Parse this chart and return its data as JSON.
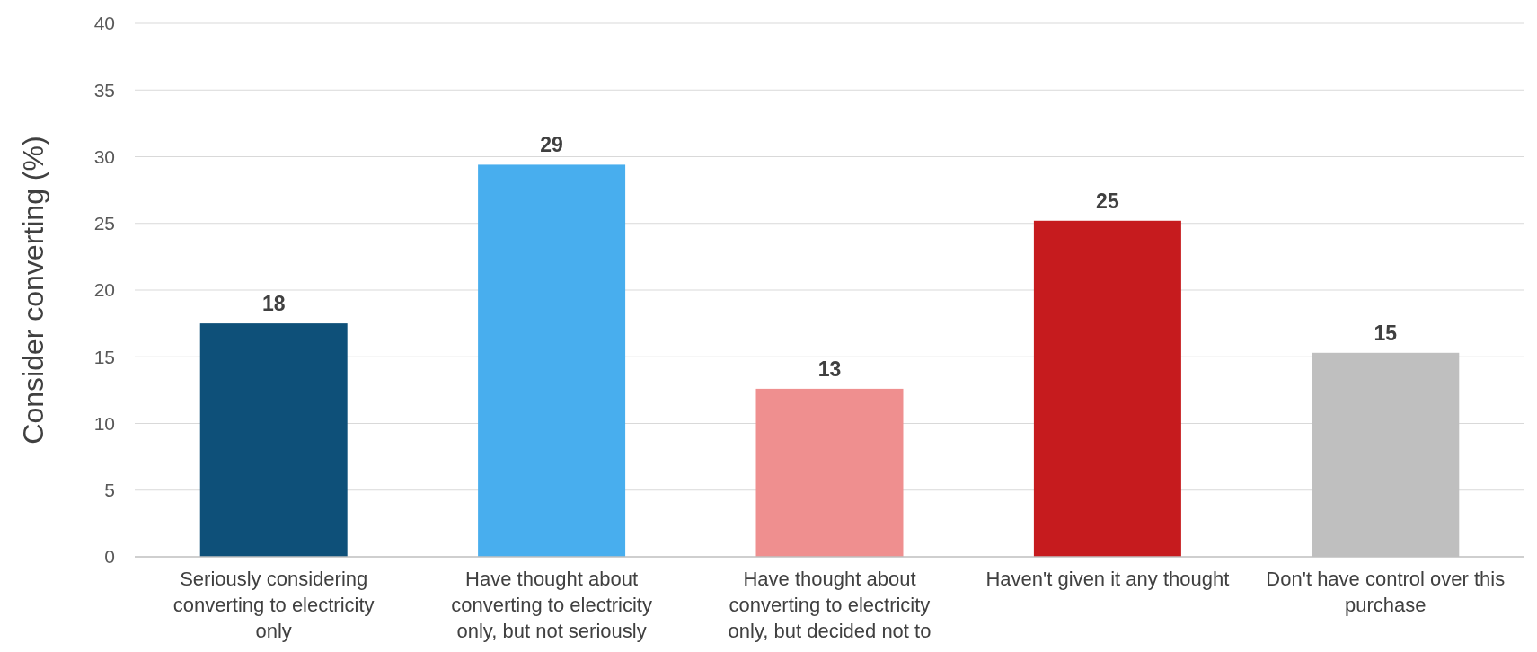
{
  "chart_data": {
    "type": "bar",
    "ylabel": "Consider converting (%)",
    "categories": [
      "Seriously considering converting to electricity only",
      "Have thought about converting to electricity only, but not seriously",
      "Have thought about converting to electricity only, but decided not to",
      "Haven't given it any thought",
      "Don't have control over this purchase"
    ],
    "values": [
      17.5,
      29.4,
      12.6,
      25.2,
      15.3
    ],
    "colors": [
      "#0e5079",
      "#48aeee",
      "#ef8f8f",
      "#c61b1e",
      "#bfbfbf"
    ],
    "value_labels": [
      "18",
      "29",
      "13",
      "25",
      "15"
    ],
    "ylim": [
      0,
      40
    ],
    "yticks": [
      0,
      5,
      10,
      15,
      20,
      25,
      30,
      35,
      40
    ],
    "grid": "y"
  }
}
